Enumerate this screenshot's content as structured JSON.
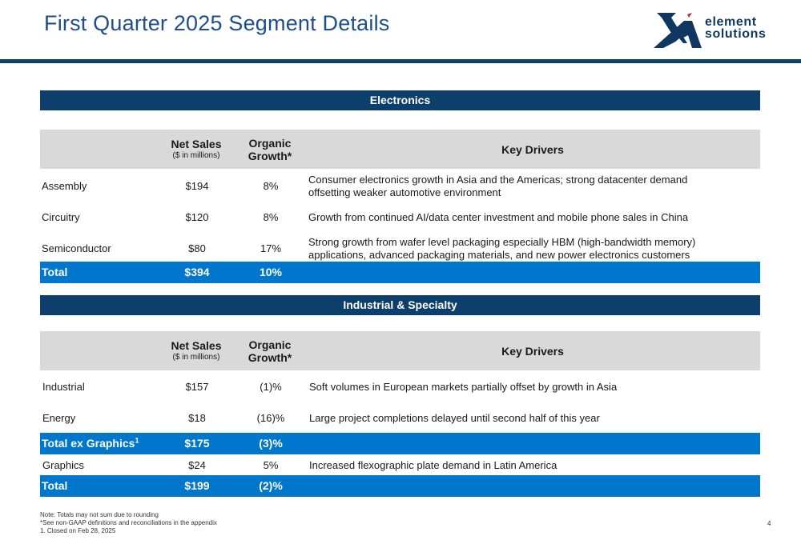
{
  "title": "First Quarter 2025 Segment Details",
  "logo": {
    "line1": "element",
    "line2": "solutions"
  },
  "colors": {
    "navy": "#0d3f6c",
    "blue": "#0077cc",
    "header_gray": "#d9d9d9",
    "title_blue": "#1f4e8c"
  },
  "table_headers": {
    "net_sales": "Net Sales",
    "net_sales_sub": "($ in millions)",
    "organic_line1": "Organic",
    "organic_line2": "Growth*",
    "key_drivers": "Key Drivers"
  },
  "electronics": {
    "section": "Electronics",
    "rows": [
      {
        "name": "Assembly",
        "sales": "$194",
        "organic": "8%",
        "driver_line1": "Consumer electronics growth in Asia and the Americas; strong datacenter demand",
        "driver_line2": "offsetting weaker automotive environment"
      },
      {
        "name": "Circuitry",
        "sales": "$120",
        "organic": "8%",
        "driver_line1": "Growth from continued AI/data center investment and mobile phone sales in China"
      },
      {
        "name": "Semiconductor",
        "sales": "$80",
        "organic": "17%",
        "driver_line1": "Strong growth from wafer level packaging especially HBM (high-bandwidth memory)",
        "driver_line2": "applications, advanced packaging materials, and new power electronics customers"
      }
    ],
    "total": {
      "name": "Total",
      "sales": "$394",
      "organic": "10%"
    }
  },
  "industrial": {
    "section": "Industrial & Specialty",
    "rows": [
      {
        "name": "Industrial",
        "sales": "$157",
        "organic": "(1)%",
        "driver_line1": "Soft volumes in European markets partially offset by growth in Asia"
      },
      {
        "name": "Energy",
        "sales": "$18",
        "organic": "(16)%",
        "driver_line1": "Large project completions delayed until second half of this year"
      }
    ],
    "subtotal": {
      "name": "Total ex Graphics",
      "sup": "1",
      "sales": "$175",
      "organic": "(3)%"
    },
    "graphics": {
      "name": "Graphics",
      "sales": "$24",
      "organic": "5%",
      "driver_line1": "Increased flexographic plate demand in Latin America"
    },
    "total": {
      "name": "Total",
      "sales": "$199",
      "organic": "(2)%"
    }
  },
  "notes": [
    "Note: Totals may not sum due to rounding",
    "*See non-GAAP definitions and reconciliations in the appendix",
    "1. Closed on Feb 28, 2025"
  ],
  "page_number": "4"
}
